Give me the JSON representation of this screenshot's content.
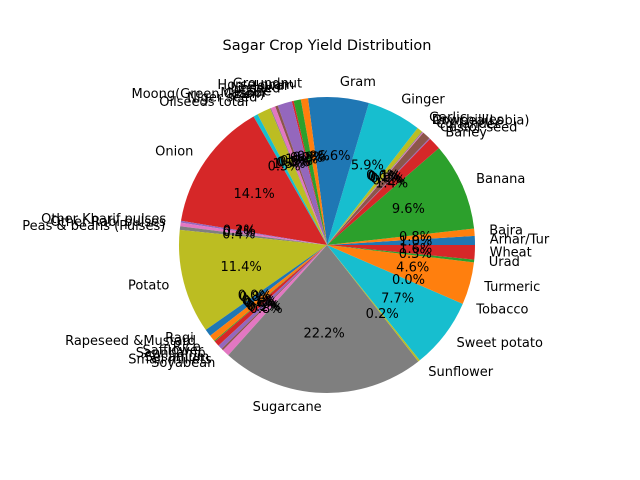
{
  "chart_data": {
    "type": "pie",
    "title": "Sagar Crop Yield Distribution",
    "start_angle_deg": 0,
    "direction": "counterclockwise",
    "autopct_format": "%1.1f%%",
    "slices": [
      {
        "label": "Arhar/Tur",
        "value": 1.0,
        "color": "#1f77b4"
      },
      {
        "label": "Bajra",
        "value": 0.8,
        "color": "#ff7f0e"
      },
      {
        "label": "Banana",
        "value": 9.7,
        "color": "#2ca02c"
      },
      {
        "label": "Barley",
        "value": 1.4,
        "color": "#d62728"
      },
      {
        "label": "Castor seed",
        "value": 0.1,
        "color": "#9467bd"
      },
      {
        "label": "Coriander",
        "value": 0.9,
        "color": "#8c564b"
      },
      {
        "label": "Cowpea(Lobia)",
        "value": 0.1,
        "color": "#e377c2"
      },
      {
        "label": "Dry chillies",
        "value": 0.1,
        "color": "#7f7f7f"
      },
      {
        "label": "Garlic",
        "value": 0.6,
        "color": "#bcbd22"
      },
      {
        "label": "Ginger",
        "value": 6.0,
        "color": "#17becf"
      },
      {
        "label": "Gram",
        "value": 6.7,
        "color": "#1f77b4"
      },
      {
        "label": "Groundnut",
        "value": 0.8,
        "color": "#ff7f0e"
      },
      {
        "label": "Horse-gram",
        "value": 0.8,
        "color": "#2ca02c"
      },
      {
        "label": "Jowar",
        "value": 0.2,
        "color": "#d62728"
      },
      {
        "label": "Linseed",
        "value": 1.6,
        "color": "#9467bd"
      },
      {
        "label": "Maize",
        "value": 0.3,
        "color": "#8c564b"
      },
      {
        "label": "Masoor",
        "value": 0.5,
        "color": "#e377c2"
      },
      {
        "label": "Moong(Green Gram)",
        "value": 0.1,
        "color": "#7f7f7f"
      },
      {
        "label": "Niger seed",
        "value": 1.5,
        "color": "#bcbd22"
      },
      {
        "label": "Oilseeds total",
        "value": 0.5,
        "color": "#17becf"
      },
      {
        "label": "Onion",
        "value": 14.3,
        "color": "#d62728"
      },
      {
        "label": "Other Kharif pulses",
        "value": 0.2,
        "color": "#9467bd"
      },
      {
        "label": "Other Rabi pulses",
        "value": 0.4,
        "color": "#e377c2"
      },
      {
        "label": "Peas & beans (Pulses)",
        "value": 0.4,
        "color": "#7f7f7f"
      },
      {
        "label": "Potato",
        "value": 11.5,
        "color": "#bcbd22"
      },
      {
        "label": "Ragi",
        "value": 0.0,
        "color": "#17becf"
      },
      {
        "label": "Rapeseed &Mustard",
        "value": 0.8,
        "color": "#1f77b4"
      },
      {
        "label": "Rice",
        "value": 0.7,
        "color": "#ff7f0e"
      },
      {
        "label": "Safflower",
        "value": 0.1,
        "color": "#2ca02c"
      },
      {
        "label": "Sannhamp",
        "value": 0.6,
        "color": "#d62728"
      },
      {
        "label": "Sesamum",
        "value": 0.5,
        "color": "#9467bd"
      },
      {
        "label": "Small millets",
        "value": 0.2,
        "color": "#8c564b"
      },
      {
        "label": "Soyabean",
        "value": 0.8,
        "color": "#e377c2"
      },
      {
        "label": "Sugarcane",
        "value": 22.5,
        "color": "#7f7f7f"
      },
      {
        "label": "Sunflower",
        "value": 0.2,
        "color": "#bcbd22"
      },
      {
        "label": "Sweet potato",
        "value": 7.8,
        "color": "#17becf"
      },
      {
        "label": "Tobacco",
        "value": 0.0,
        "color": "#1f77b4"
      },
      {
        "label": "Turmeric",
        "value": 4.7,
        "color": "#ff7f0e"
      },
      {
        "label": "Urad",
        "value": 0.3,
        "color": "#2ca02c"
      },
      {
        "label": "Wheat",
        "value": 1.6,
        "color": "#d62728"
      }
    ]
  }
}
